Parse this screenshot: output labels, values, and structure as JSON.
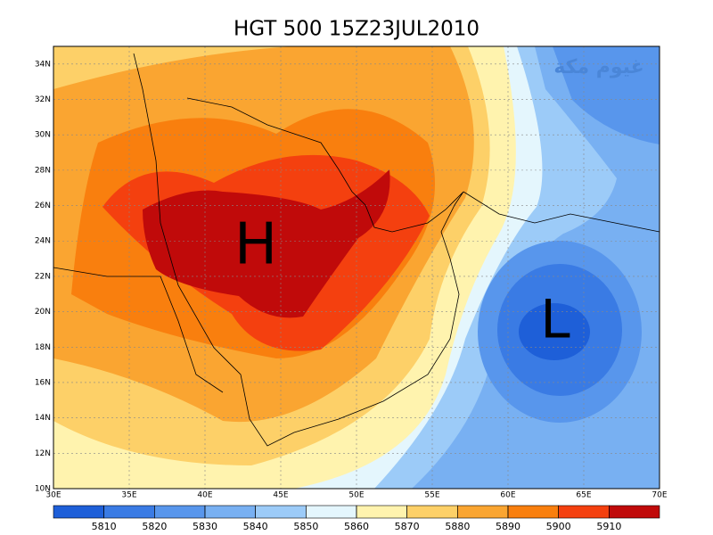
{
  "title": "HGT 500 15Z23JUL2010",
  "watermark": "غيوم مكة",
  "high_label": "H",
  "low_label": "L",
  "xlim": [
    30,
    70
  ],
  "ylim": [
    10,
    35
  ],
  "xticks": [
    {
      "value": 30,
      "label": "30E"
    },
    {
      "value": 35,
      "label": "35E"
    },
    {
      "value": 40,
      "label": "40E"
    },
    {
      "value": 45,
      "label": "45E"
    },
    {
      "value": 50,
      "label": "50E"
    },
    {
      "value": 55,
      "label": "55E"
    },
    {
      "value": 60,
      "label": "60E"
    },
    {
      "value": 65,
      "label": "65E"
    },
    {
      "value": 70,
      "label": "70E"
    }
  ],
  "yticks": [
    {
      "value": 10,
      "label": "10N"
    },
    {
      "value": 12,
      "label": "12N"
    },
    {
      "value": 14,
      "label": "14N"
    },
    {
      "value": 16,
      "label": "16N"
    },
    {
      "value": 18,
      "label": "18N"
    },
    {
      "value": 20,
      "label": "20N"
    },
    {
      "value": 22,
      "label": "22N"
    },
    {
      "value": 24,
      "label": "24N"
    },
    {
      "value": 26,
      "label": "26N"
    },
    {
      "value": 28,
      "label": "28N"
    },
    {
      "value": 30,
      "label": "30N"
    },
    {
      "value": 32,
      "label": "32N"
    },
    {
      "value": 34,
      "label": "34N"
    }
  ],
  "colorbar": {
    "levels": [
      5810,
      5820,
      5830,
      5840,
      5850,
      5860,
      5870,
      5880,
      5890,
      5900,
      5910
    ],
    "colors": [
      "#1e5fd8",
      "#3a7be4",
      "#5896ec",
      "#78b0f2",
      "#9ccbf8",
      "#e4f6fd",
      "#fff3ae",
      "#fdd068",
      "#faa531",
      "#f97f0e",
      "#f4400f",
      "#c00a0a"
    ]
  }
}
